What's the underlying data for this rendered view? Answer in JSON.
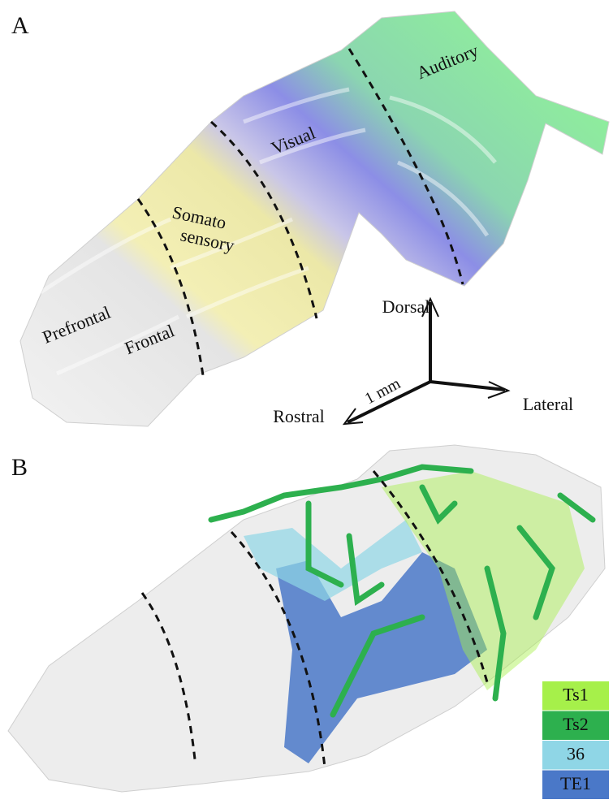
{
  "panel_a": {
    "label": "A",
    "regions": {
      "prefrontal": "Prefrontal",
      "frontal": "Frontal",
      "somato": "Somato",
      "sensory": "sensory",
      "visual": "Visual",
      "auditory": "Auditory"
    },
    "orientation": {
      "dorsal": "Dorsal",
      "lateral": "Lateral",
      "rostral": "Rostral",
      "scale": "1 mm"
    }
  },
  "panel_b": {
    "label": "B",
    "legend": [
      {
        "name": "Ts1",
        "color": "#a6f04a"
      },
      {
        "name": "Ts2",
        "color": "#2db04e"
      },
      {
        "name": "36",
        "color": "#8fd6e6"
      },
      {
        "name": "TE1",
        "color": "#4a78c8"
      }
    ]
  }
}
